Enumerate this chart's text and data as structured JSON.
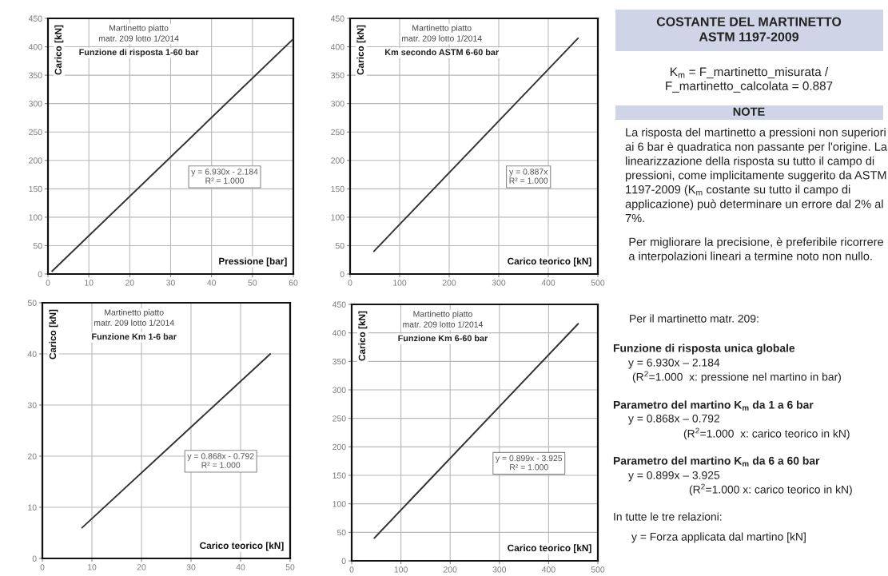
{
  "chart_data": [
    {
      "type": "line",
      "title": "Funzione di risposta 1-60 bar",
      "subtitle": "Martinetto piatto\nmatr. 209 lotto 1/2014",
      "xlabel": "Pressione [bar]",
      "ylabel": "Carico [kN]",
      "x": [
        1,
        60
      ],
      "series": [
        {
          "color": "#333333",
          "values": [
            5,
            414
          ]
        }
      ],
      "xlim": [
        0,
        60
      ],
      "xticks": [
        0,
        10,
        20,
        30,
        40,
        50,
        60
      ],
      "ylim": [
        0,
        450
      ],
      "yticks": [
        0,
        50,
        100,
        150,
        200,
        250,
        300,
        350,
        400,
        450
      ],
      "grid": true,
      "annotations": [
        "y = 6.930x - 2.184\nR² = 1.000"
      ]
    },
    {
      "type": "line",
      "title": "Km secondo ASTM 6-60 bar",
      "subtitle": "Martinetto piatto\nmatr. 209 lotto 1/2014",
      "xlabel": "Carico teorico [kN]",
      "ylabel": "Carico [kN]",
      "x": [
        48,
        460
      ],
      "series": [
        {
          "color": "#333333",
          "values": [
            40,
            415
          ]
        }
      ],
      "xlim": [
        0,
        500
      ],
      "xticks": [
        0,
        100,
        200,
        300,
        400,
        500
      ],
      "ylim": [
        0,
        450
      ],
      "yticks": [
        0,
        50,
        100,
        150,
        200,
        250,
        300,
        350,
        400,
        450
      ],
      "grid": true,
      "annotations": [
        "y = 0.887x\nR² = 1.000"
      ]
    },
    {
      "type": "other",
      "title": "COSTANTE DEL MARTINETTO\nASTM 1197-2009",
      "annotations": [
        "K$_{m}$ = F_martinetto_misurata /\nF_martinetto_calcolata = 0.887",
        "NOTE",
        "La risposta del martinetto a pressioni non superiori ai 6 bar è quadratica non passante per l'origine. La linearizzazione della risposta su tutto il campo di pressioni, come implicitamente suggerito da ASTM 1197-2009 (K$_{m}$ costante su tutto il campo di applicazione) può determinare un errore dal 2% al 7%.",
        "Per migliorare la precisione, è preferibile ricorrere a interpolazioni lineari a termine noto non nullo."
      ]
    },
    {
      "type": "line",
      "title": "Funzione Km 1-6 bar",
      "subtitle": "Martinetto piatto\nmatr. 209 lotto 1/2014",
      "xlabel": "Carico teorico [kN]",
      "ylabel": "Carico [kN]",
      "x": [
        8,
        46
      ],
      "series": [
        {
          "color": "#333333",
          "values": [
            6,
            40
          ]
        }
      ],
      "xlim": [
        0,
        50
      ],
      "xticks": [
        0,
        10,
        20,
        30,
        40,
        50
      ],
      "ylim": [
        0,
        50
      ],
      "yticks": [
        0,
        10,
        20,
        30,
        40,
        50
      ],
      "grid": true,
      "annotations": [
        "y = 0.868x - 0.792\nR² = 1.000"
      ]
    },
    {
      "type": "line",
      "title": "Funzione Km 6-60 bar",
      "subtitle": "Martinetto piatto\nmatr. 209 lotto 1/2014",
      "xlabel": "Carico teorico [kN]",
      "ylabel": "Carico [kN]",
      "x": [
        46,
        460
      ],
      "series": [
        {
          "color": "#333333",
          "values": [
            40,
            416
          ]
        }
      ],
      "xlim": [
        0,
        500
      ],
      "xticks": [
        0,
        100,
        200,
        300,
        400,
        500
      ],
      "ylim": [
        0,
        450
      ],
      "yticks": [
        0,
        50,
        100,
        150,
        200,
        250,
        300,
        350,
        400,
        450
      ],
      "grid": true,
      "annotations": [
        "y = 0.899x - 3.925\nR² = 1.000"
      ]
    },
    {
      "type": "other",
      "annotations": [
        "Per il martinetto matr. 209:",
        "Funzione di risposta unica globale",
        "y = 6.930x – 2.184",
        "(R$^{2}$=1.000  x: pressione nel martino in bar)",
        "Parametro del martino K$_{m}$ da 1 a 6 bar",
        "y = 0.868x – 0.792",
        "(R$^{2}$=1.000  x: carico teorico in kN)",
        "Parametro del martino K$_{m}$ da 6 a 60 bar",
        "y = 0.899x – 3.925",
        "(R$^{2}$=1.000 x: carico teorico in kN)",
        "In tutte le tre relazioni:",
        "y = Forza applicata dal martino [kN]"
      ]
    }
  ]
}
